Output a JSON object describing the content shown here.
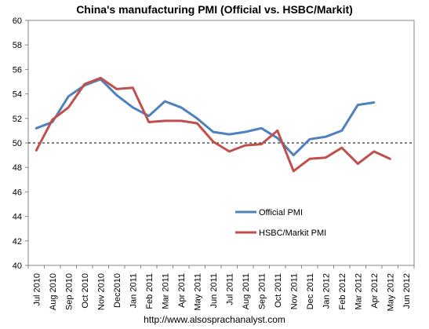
{
  "chart_data": {
    "type": "line",
    "title": "China's manufacturing PMI (Official vs. HSBC/Markit)",
    "categories": [
      "Jul 2010",
      "Aug 2010",
      "Sep 2010",
      "Oct 2010",
      "Nov 2010",
      "Dec2010",
      "Jan 2011",
      "Feb 2011",
      "Mar 2011",
      "Apr 2011",
      "May 2011",
      "Jun 2011",
      "Jul 2011",
      "Aug 2011",
      "Sep 2011",
      "Oct 2011",
      "Nov 2011",
      "Dec 2011",
      "Jan 2012",
      "Feb 2012",
      "Mar 2012",
      "Apr 2012",
      "May 2012",
      "Jun 2012"
    ],
    "ylim": [
      40,
      60
    ],
    "yticks": [
      40,
      42,
      44,
      46,
      48,
      50,
      52,
      54,
      56,
      58,
      60
    ],
    "reference_line": 50,
    "grid": false,
    "legend_position": "lower-right",
    "series": [
      {
        "name": "Official PMI",
        "color": "#4F81BD",
        "values": [
          51.2,
          51.7,
          53.8,
          54.7,
          55.2,
          53.9,
          52.9,
          52.2,
          53.4,
          52.9,
          52.0,
          50.9,
          50.7,
          50.9,
          51.2,
          50.4,
          49.0,
          50.3,
          50.5,
          51.0,
          53.1,
          53.3,
          null,
          null
        ]
      },
      {
        "name": "HSBC/Markit PMI",
        "color": "#C0504D",
        "values": [
          49.4,
          51.9,
          52.9,
          54.8,
          55.3,
          54.4,
          54.5,
          51.7,
          51.8,
          51.8,
          51.6,
          50.1,
          49.3,
          49.8,
          49.9,
          51.0,
          47.7,
          48.7,
          48.8,
          49.6,
          48.3,
          49.3,
          48.7,
          null
        ]
      }
    ]
  },
  "source": "http://www.alsosprachanalyst.com"
}
